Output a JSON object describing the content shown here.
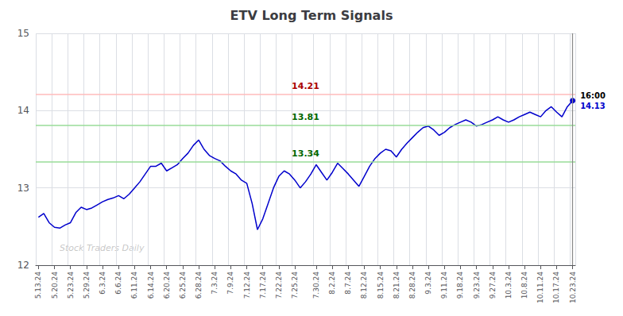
{
  "chart_data": {
    "type": "line",
    "title": "ETV Long Term Signals",
    "color": "#0000cc",
    "categories": [
      "5.13.24",
      null,
      null,
      "5.20.24",
      null,
      null,
      "5.23.24",
      null,
      null,
      "5.29.24",
      null,
      null,
      "6.3.24",
      null,
      null,
      "6.6.24",
      null,
      null,
      "6.11.24",
      null,
      null,
      "6.14.24",
      null,
      null,
      "6.20.24",
      null,
      null,
      "6.25.24",
      null,
      null,
      "6.28.24",
      null,
      null,
      "7.3.24",
      null,
      null,
      "7.9.24",
      null,
      null,
      "7.12.24",
      null,
      null,
      "7.17.24",
      null,
      null,
      "7.22.24",
      null,
      null,
      "7.25.24",
      null,
      null,
      null,
      "7.30.24",
      null,
      null,
      "8.2.24",
      null,
      null,
      "8.7.24",
      null,
      null,
      "8.12.24",
      null,
      null,
      "8.15.24",
      null,
      null,
      "8.21.24",
      null,
      null,
      "8.28.24",
      null,
      null,
      "9.3.24",
      null,
      null,
      "9.11.24",
      null,
      null,
      "9.18.24",
      null,
      null,
      "9.23.24",
      null,
      null,
      "9.27.24",
      null,
      null,
      "10.3.24",
      null,
      null,
      "10.8.24",
      null,
      null,
      "10.11.24",
      null,
      null,
      "10.17.24",
      null,
      null,
      "10.23.24"
    ],
    "values": [
      12.62,
      12.67,
      12.55,
      12.49,
      12.48,
      12.52,
      12.55,
      12.68,
      12.75,
      12.72,
      12.74,
      12.78,
      12.82,
      12.85,
      12.87,
      12.9,
      12.86,
      12.92,
      13.0,
      13.08,
      13.18,
      13.28,
      13.28,
      13.32,
      13.22,
      13.26,
      13.3,
      13.38,
      13.45,
      13.55,
      13.62,
      13.5,
      13.42,
      13.38,
      13.35,
      13.28,
      13.22,
      13.18,
      13.1,
      13.06,
      12.8,
      12.46,
      12.6,
      12.8,
      13.0,
      13.15,
      13.22,
      13.18,
      13.1,
      13.0,
      13.08,
      13.18,
      13.3,
      13.2,
      13.1,
      13.2,
      13.32,
      13.25,
      13.18,
      13.1,
      13.02,
      13.15,
      13.28,
      13.38,
      13.45,
      13.5,
      13.48,
      13.4,
      13.5,
      13.58,
      13.65,
      13.72,
      13.78,
      13.8,
      13.75,
      13.68,
      13.72,
      13.78,
      13.82,
      13.85,
      13.88,
      13.85,
      13.8,
      13.82,
      13.85,
      13.88,
      13.92,
      13.88,
      13.85,
      13.88,
      13.92,
      13.95,
      13.98,
      13.95,
      13.92,
      14.0,
      14.05,
      13.98,
      13.92,
      14.05,
      14.13
    ],
    "hlines": [
      {
        "y": 14.21,
        "label": "14.21",
        "color": "#ffbbbb",
        "label_color": "#aa0000"
      },
      {
        "y": 13.81,
        "label": "13.81",
        "color": "#99dd99",
        "label_color": "#006600"
      },
      {
        "y": 13.34,
        "label": "13.34",
        "color": "#99dd99",
        "label_color": "#006600"
      }
    ],
    "last_point_labels": [
      "16:00",
      "14.13"
    ],
    "watermark": "Stock Traders Daily",
    "ylim": [
      12,
      15
    ],
    "yticks": [
      12,
      13,
      14,
      15
    ],
    "grid": true
  }
}
